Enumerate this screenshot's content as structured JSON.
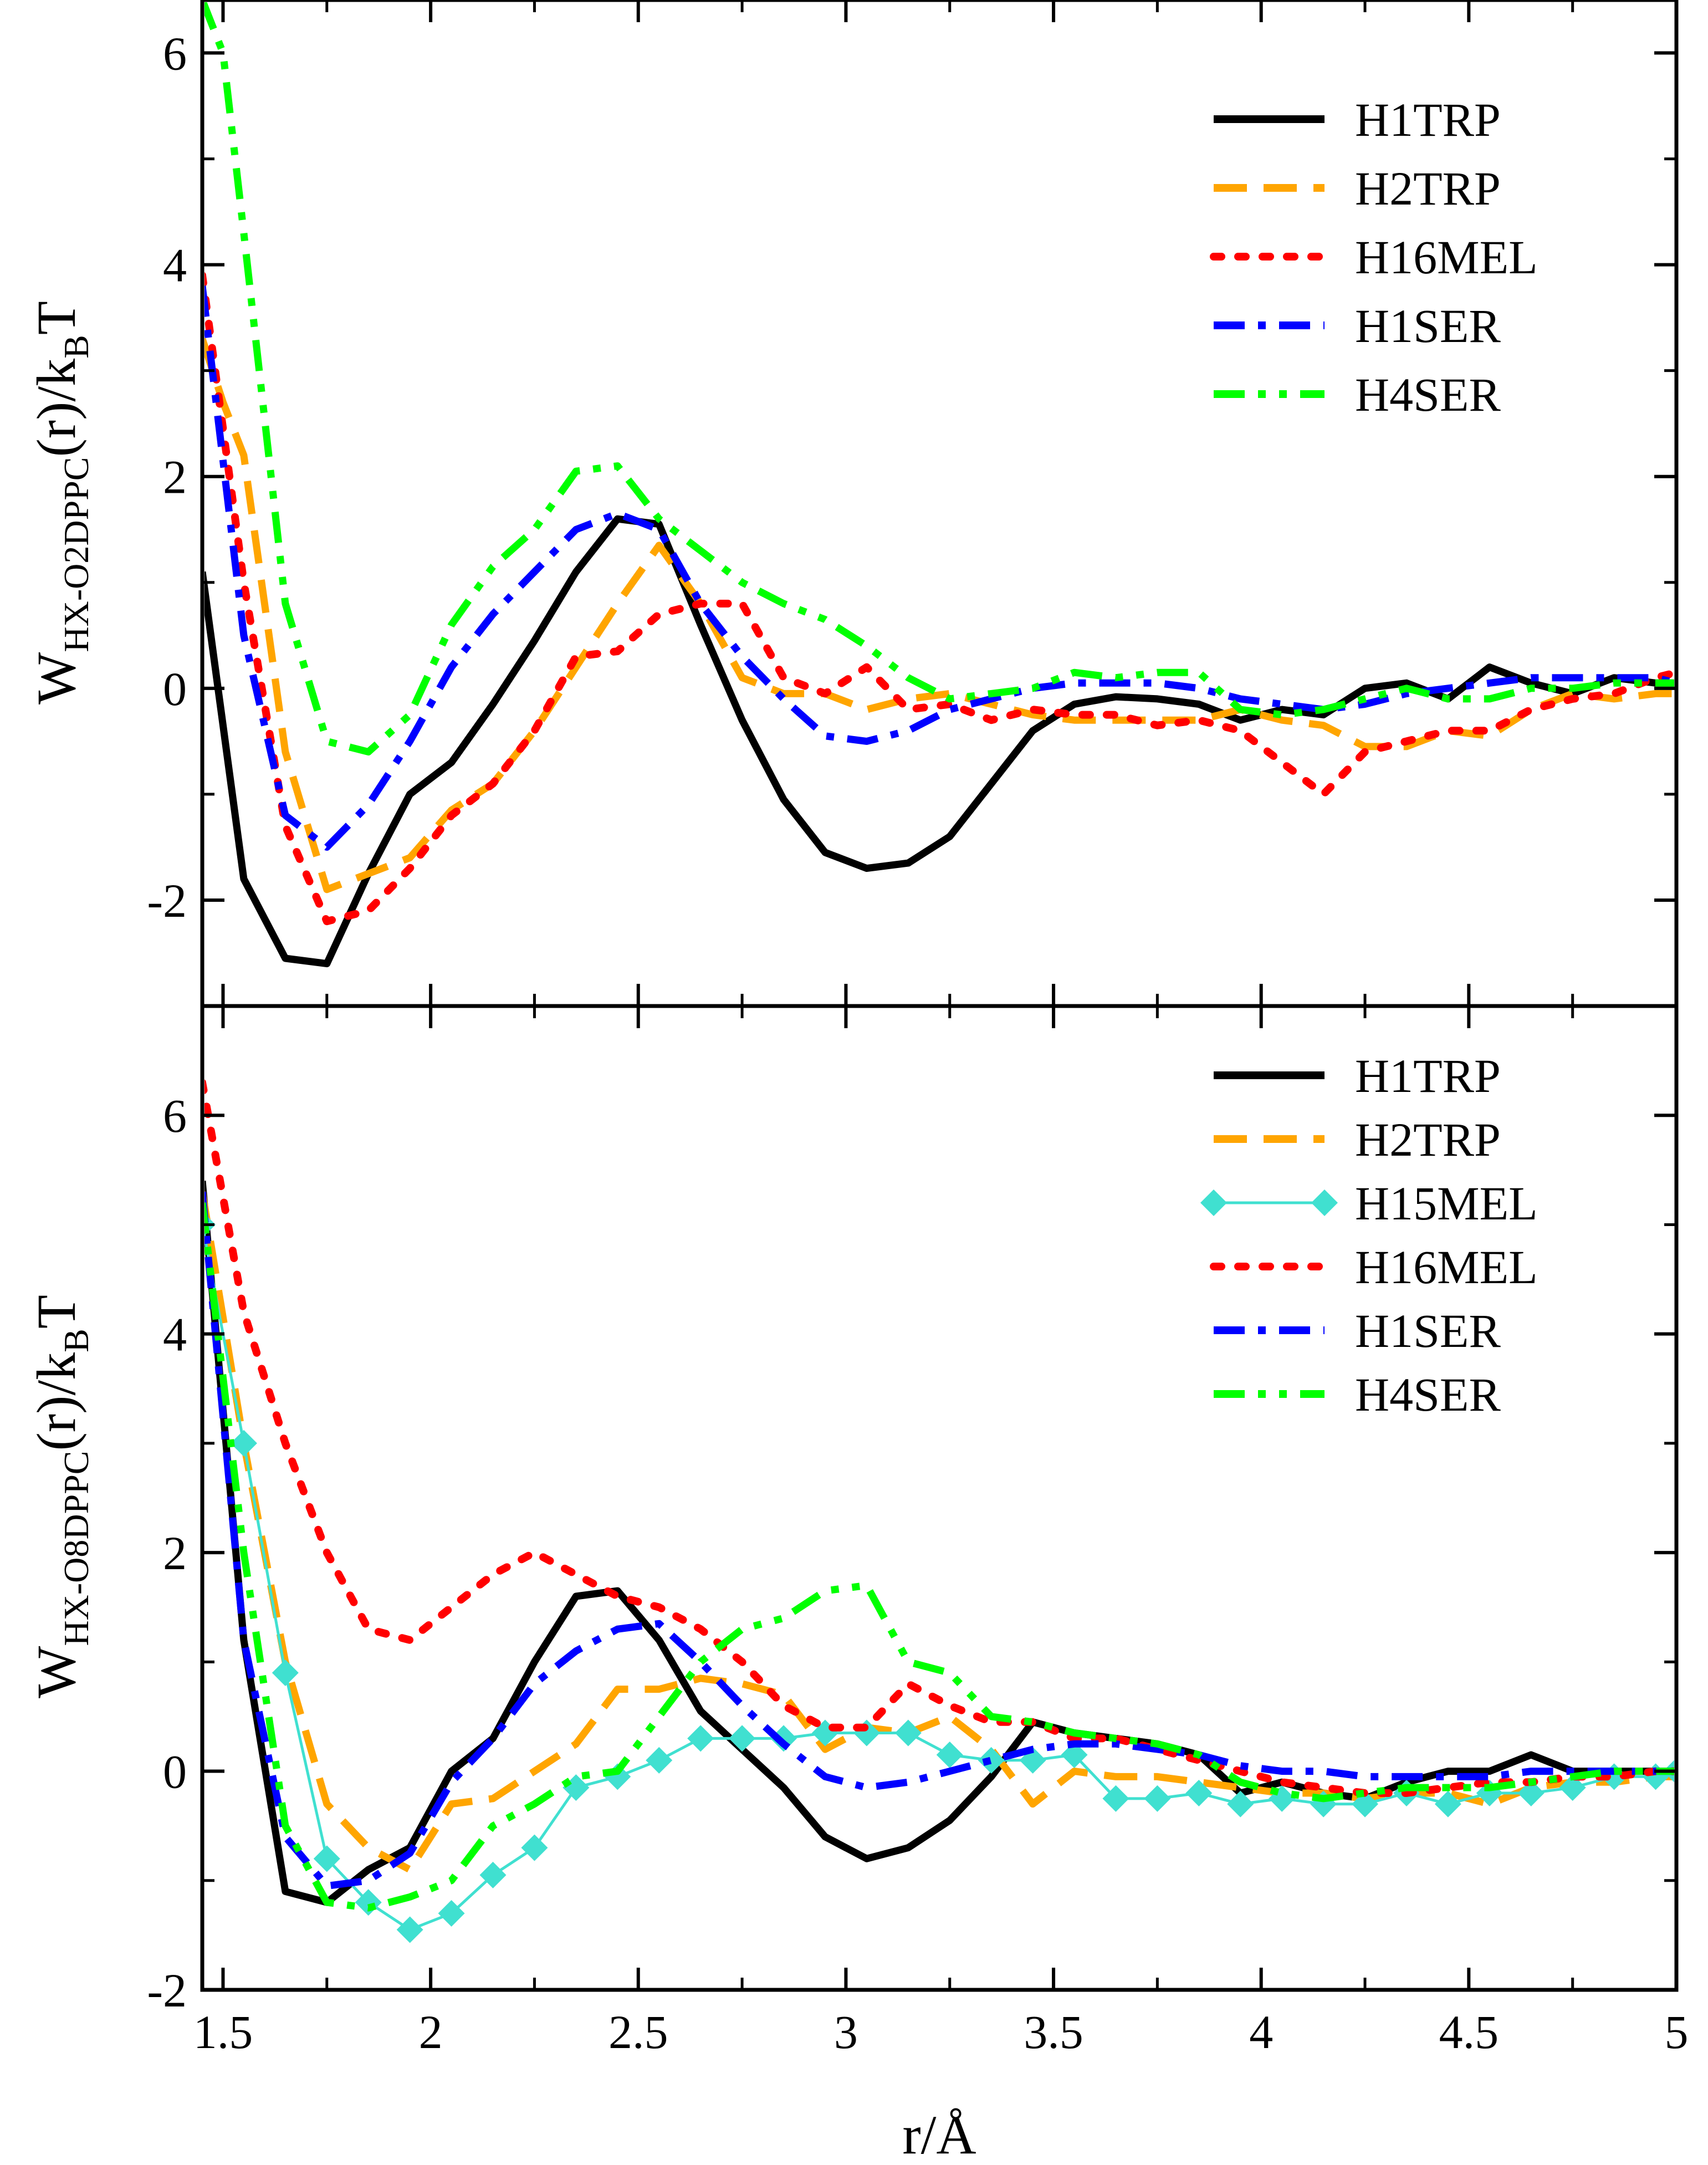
{
  "chart_data": [
    {
      "type": "line",
      "panel": "top",
      "ylabel": {
        "main": "W",
        "sub": "HX-O2DPPC",
        "mid": "(r)/k",
        "sub2": "B",
        "tail": "T"
      },
      "xlim": [
        1.45,
        5.0
      ],
      "ylim": [
        -3.0,
        6.5
      ],
      "yticks": [
        -2,
        0,
        2,
        4,
        6
      ],
      "ytick_labels": [
        "-2",
        "0",
        "2",
        "4",
        "6"
      ],
      "legend_position": "top-right",
      "series": [
        {
          "name": "H1TRP",
          "style": "solid",
          "color": "#000000",
          "x": [
            1.45,
            1.55,
            1.65,
            1.75,
            1.85,
            1.95,
            2.05,
            2.15,
            2.25,
            2.35,
            2.45,
            2.55,
            2.65,
            2.75,
            2.85,
            2.95,
            3.05,
            3.15,
            3.25,
            3.35,
            3.45,
            3.55,
            3.65,
            3.75,
            3.85,
            3.95,
            4.05,
            4.15,
            4.25,
            4.35,
            4.45,
            4.55,
            4.65,
            4.75,
            4.85,
            4.95,
            5.0
          ],
          "y": [
            1.1,
            -1.8,
            -2.55,
            -2.6,
            -1.75,
            -1.0,
            -0.7,
            -0.15,
            0.45,
            1.1,
            1.6,
            1.55,
            0.6,
            -0.3,
            -1.05,
            -1.55,
            -1.7,
            -1.65,
            -1.4,
            -0.9,
            -0.4,
            -0.15,
            -0.08,
            -0.1,
            -0.15,
            -0.3,
            -0.2,
            -0.25,
            0.0,
            0.05,
            -0.1,
            0.2,
            0.05,
            -0.05,
            0.1,
            0.05,
            0.05
          ]
        },
        {
          "name": "H2TRP",
          "style": "dashed",
          "color": "#FFA500",
          "x": [
            1.45,
            1.5,
            1.55,
            1.65,
            1.75,
            1.85,
            1.95,
            2.05,
            2.15,
            2.25,
            2.35,
            2.45,
            2.55,
            2.65,
            2.75,
            2.85,
            2.95,
            3.05,
            3.15,
            3.25,
            3.35,
            3.45,
            3.55,
            3.65,
            3.75,
            3.85,
            3.95,
            4.05,
            4.15,
            4.25,
            4.35,
            4.45,
            4.55,
            4.65,
            4.75,
            4.85,
            4.95,
            5.0
          ],
          "y": [
            3.3,
            2.7,
            2.2,
            -0.6,
            -1.9,
            -1.75,
            -1.6,
            -1.15,
            -0.9,
            -0.4,
            0.2,
            0.8,
            1.35,
            0.8,
            0.1,
            -0.05,
            -0.05,
            -0.2,
            -0.1,
            -0.05,
            -0.15,
            -0.25,
            -0.3,
            -0.3,
            -0.3,
            -0.3,
            -0.2,
            -0.3,
            -0.35,
            -0.55,
            -0.55,
            -0.4,
            -0.45,
            -0.2,
            -0.05,
            -0.1,
            -0.05,
            -0.05
          ]
        },
        {
          "name": "H16MEL",
          "style": "dotted",
          "color": "#FF0000",
          "x": [
            1.45,
            1.55,
            1.65,
            1.75,
            1.85,
            1.95,
            2.05,
            2.15,
            2.25,
            2.35,
            2.45,
            2.55,
            2.65,
            2.75,
            2.85,
            2.95,
            3.05,
            3.15,
            3.25,
            3.35,
            3.45,
            3.55,
            3.65,
            3.75,
            3.85,
            3.95,
            4.05,
            4.15,
            4.25,
            4.35,
            4.45,
            4.55,
            4.65,
            4.75,
            4.85,
            4.95,
            5.0
          ],
          "y": [
            3.9,
            1.0,
            -1.3,
            -2.2,
            -2.1,
            -1.7,
            -1.2,
            -0.9,
            -0.4,
            0.3,
            0.35,
            0.7,
            0.8,
            0.8,
            0.1,
            -0.05,
            0.2,
            -0.2,
            -0.15,
            -0.3,
            -0.2,
            -0.25,
            -0.25,
            -0.35,
            -0.3,
            -0.4,
            -0.7,
            -1.0,
            -0.6,
            -0.5,
            -0.4,
            -0.4,
            -0.2,
            -0.1,
            -0.05,
            0.1,
            0.15
          ]
        },
        {
          "name": "H1SER",
          "style": "dashdot",
          "color": "#0000FF",
          "x": [
            1.45,
            1.55,
            1.65,
            1.75,
            1.85,
            1.95,
            2.05,
            2.15,
            2.25,
            2.35,
            2.45,
            2.55,
            2.65,
            2.75,
            2.85,
            2.95,
            3.05,
            3.15,
            3.25,
            3.35,
            3.45,
            3.55,
            3.65,
            3.75,
            3.85,
            3.95,
            4.05,
            4.15,
            4.25,
            4.35,
            4.45,
            4.55,
            4.65,
            4.75,
            4.85,
            4.95,
            5.0
          ],
          "y": [
            3.8,
            0.5,
            -1.2,
            -1.5,
            -1.1,
            -0.5,
            0.2,
            0.7,
            1.1,
            1.5,
            1.65,
            1.5,
            0.8,
            0.3,
            -0.1,
            -0.45,
            -0.5,
            -0.4,
            -0.2,
            -0.1,
            0.0,
            0.05,
            0.05,
            0.05,
            0.0,
            -0.1,
            -0.15,
            -0.2,
            -0.15,
            -0.05,
            0.0,
            0.05,
            0.1,
            0.1,
            0.1,
            0.1,
            0.05
          ]
        },
        {
          "name": "H4SER",
          "style": "dashdotdot",
          "color": "#00FF00",
          "x": [
            1.45,
            1.5,
            1.55,
            1.65,
            1.75,
            1.85,
            1.95,
            2.05,
            2.15,
            2.25,
            2.35,
            2.45,
            2.55,
            2.65,
            2.75,
            2.85,
            2.95,
            3.05,
            3.15,
            3.25,
            3.35,
            3.45,
            3.55,
            3.65,
            3.75,
            3.85,
            3.95,
            4.05,
            4.15,
            4.25,
            4.35,
            4.45,
            4.55,
            4.65,
            4.75,
            4.85,
            4.95,
            5.0
          ],
          "y": [
            6.5,
            6.0,
            4.3,
            0.8,
            -0.5,
            -0.6,
            -0.25,
            0.6,
            1.15,
            1.5,
            2.05,
            2.1,
            1.6,
            1.3,
            1.0,
            0.8,
            0.65,
            0.4,
            0.1,
            -0.1,
            -0.05,
            0.0,
            0.15,
            0.1,
            0.15,
            0.15,
            -0.2,
            -0.25,
            -0.2,
            -0.1,
            0.0,
            -0.1,
            -0.1,
            0.0,
            0.0,
            0.05,
            0.05,
            0.05
          ]
        }
      ]
    },
    {
      "type": "line",
      "panel": "bottom",
      "ylabel": {
        "main": "W",
        "sub": "HX-O8DPPC",
        "mid": "(r)/k",
        "sub2": "B",
        "tail": "T"
      },
      "xlabel": "r/Å",
      "xlim": [
        1.45,
        5.0
      ],
      "ylim": [
        -2.0,
        7.0
      ],
      "xticks": [
        1.5,
        2,
        2.5,
        3,
        3.5,
        4,
        4.5,
        5
      ],
      "xtick_labels": [
        "1.5",
        "2",
        "2.5",
        "3",
        "3.5",
        "4",
        "4.5",
        "5"
      ],
      "yticks": [
        -2,
        0,
        2,
        4,
        6
      ],
      "ytick_labels": [
        "-2",
        "0",
        "2",
        "4",
        "6"
      ],
      "legend_position": "top-right",
      "series": [
        {
          "name": "H1TRP",
          "style": "solid",
          "color": "#000000",
          "x": [
            1.45,
            1.55,
            1.65,
            1.75,
            1.85,
            1.95,
            2.05,
            2.15,
            2.25,
            2.35,
            2.45,
            2.55,
            2.65,
            2.75,
            2.85,
            2.95,
            3.05,
            3.15,
            3.25,
            3.35,
            3.45,
            3.55,
            3.65,
            3.75,
            3.85,
            3.95,
            4.05,
            4.15,
            4.25,
            4.35,
            4.45,
            4.55,
            4.65,
            4.75,
            4.85,
            4.95,
            5.0
          ],
          "y": [
            5.4,
            1.2,
            -1.1,
            -1.2,
            -0.9,
            -0.7,
            0.0,
            0.3,
            1.0,
            1.6,
            1.65,
            1.2,
            0.55,
            0.2,
            -0.15,
            -0.6,
            -0.8,
            -0.7,
            -0.45,
            -0.05,
            0.45,
            0.35,
            0.3,
            0.25,
            0.15,
            -0.2,
            -0.1,
            -0.2,
            -0.25,
            -0.1,
            0.0,
            0.0,
            0.15,
            0.0,
            0.0,
            0.0,
            0.0
          ]
        },
        {
          "name": "H2TRP",
          "style": "dashed",
          "color": "#FFA500",
          "x": [
            1.45,
            1.55,
            1.65,
            1.75,
            1.85,
            1.95,
            2.05,
            2.15,
            2.25,
            2.35,
            2.45,
            2.55,
            2.65,
            2.75,
            2.85,
            2.95,
            3.05,
            3.15,
            3.25,
            3.35,
            3.45,
            3.55,
            3.65,
            3.75,
            3.85,
            3.95,
            4.05,
            4.15,
            4.25,
            4.35,
            4.45,
            4.55,
            4.65,
            4.75,
            4.85,
            4.95,
            5.0
          ],
          "y": [
            5.3,
            3.0,
            1.0,
            -0.3,
            -0.7,
            -0.9,
            -0.3,
            -0.25,
            0.0,
            0.25,
            0.75,
            0.75,
            0.85,
            0.8,
            0.7,
            0.2,
            0.4,
            0.35,
            0.5,
            0.2,
            -0.3,
            0.0,
            -0.05,
            -0.05,
            -0.1,
            -0.15,
            -0.2,
            -0.2,
            -0.25,
            -0.2,
            -0.2,
            -0.3,
            -0.15,
            -0.1,
            -0.1,
            -0.05,
            -0.05
          ]
        },
        {
          "name": "H15MEL",
          "style": "solid-diamond",
          "color": "#40E0D0",
          "x": [
            1.45,
            1.55,
            1.65,
            1.75,
            1.85,
            1.95,
            2.05,
            2.15,
            2.25,
            2.35,
            2.45,
            2.55,
            2.65,
            2.75,
            2.85,
            2.95,
            3.05,
            3.15,
            3.25,
            3.35,
            3.45,
            3.55,
            3.65,
            3.75,
            3.85,
            3.95,
            4.05,
            4.15,
            4.25,
            4.35,
            4.45,
            4.55,
            4.65,
            4.75,
            4.85,
            4.95,
            5.0
          ],
          "y": [
            5.0,
            3.0,
            0.9,
            -0.8,
            -1.2,
            -1.45,
            -1.3,
            -0.95,
            -0.7,
            -0.15,
            -0.05,
            0.1,
            0.3,
            0.3,
            0.3,
            0.35,
            0.35,
            0.35,
            0.15,
            0.1,
            0.1,
            0.15,
            -0.25,
            -0.25,
            -0.2,
            -0.3,
            -0.25,
            -0.3,
            -0.3,
            -0.2,
            -0.3,
            -0.2,
            -0.2,
            -0.15,
            -0.05,
            -0.05,
            0.0
          ]
        },
        {
          "name": "H16MEL",
          "style": "dotted",
          "color": "#FF0000",
          "x": [
            1.45,
            1.55,
            1.65,
            1.75,
            1.85,
            1.95,
            2.05,
            2.15,
            2.25,
            2.35,
            2.45,
            2.55,
            2.65,
            2.75,
            2.85,
            2.95,
            3.05,
            3.15,
            3.25,
            3.35,
            3.45,
            3.55,
            3.65,
            3.75,
            3.85,
            3.95,
            4.05,
            4.15,
            4.25,
            4.35,
            4.45,
            4.55,
            4.65,
            4.75,
            4.85,
            4.95,
            5.0
          ],
          "y": [
            6.3,
            4.2,
            3.0,
            2.0,
            1.3,
            1.2,
            1.5,
            1.8,
            2.0,
            1.8,
            1.6,
            1.5,
            1.3,
            1.0,
            0.6,
            0.4,
            0.4,
            0.8,
            0.6,
            0.45,
            0.45,
            0.3,
            0.3,
            0.2,
            0.1,
            0.0,
            -0.1,
            -0.15,
            -0.2,
            -0.2,
            -0.15,
            -0.1,
            -0.1,
            -0.05,
            -0.05,
            0.0,
            0.0
          ]
        },
        {
          "name": "H1SER",
          "style": "dashdot",
          "color": "#0000FF",
          "x": [
            1.45,
            1.55,
            1.65,
            1.75,
            1.85,
            1.95,
            2.05,
            2.15,
            2.25,
            2.35,
            2.45,
            2.55,
            2.65,
            2.75,
            2.85,
            2.95,
            3.05,
            3.15,
            3.25,
            3.35,
            3.45,
            3.55,
            3.65,
            3.75,
            3.85,
            3.95,
            4.05,
            4.15,
            4.25,
            4.35,
            4.45,
            4.55,
            4.65,
            4.75,
            4.85,
            4.95,
            5.0
          ],
          "y": [
            5.3,
            1.2,
            -0.6,
            -1.05,
            -1.0,
            -0.75,
            -0.1,
            0.3,
            0.8,
            1.1,
            1.3,
            1.35,
            1.0,
            0.6,
            0.25,
            -0.05,
            -0.15,
            -0.1,
            0.0,
            0.1,
            0.2,
            0.25,
            0.25,
            0.2,
            0.15,
            0.05,
            0.0,
            0.0,
            -0.05,
            -0.05,
            -0.05,
            -0.05,
            0.0,
            0.0,
            0.0,
            0.0,
            0.0
          ]
        },
        {
          "name": "H4SER",
          "style": "dashdotdot",
          "color": "#00FF00",
          "x": [
            1.45,
            1.55,
            1.65,
            1.75,
            1.85,
            1.95,
            2.05,
            2.15,
            2.25,
            2.35,
            2.45,
            2.55,
            2.65,
            2.75,
            2.85,
            2.95,
            3.05,
            3.15,
            3.25,
            3.35,
            3.45,
            3.55,
            3.65,
            3.75,
            3.85,
            3.95,
            4.05,
            4.15,
            4.25,
            4.35,
            4.45,
            4.55,
            4.65,
            4.75,
            4.85,
            4.95,
            5.0
          ],
          "y": [
            5.2,
            2.0,
            -0.5,
            -1.2,
            -1.25,
            -1.15,
            -1.0,
            -0.5,
            -0.3,
            -0.05,
            0.0,
            0.5,
            1.0,
            1.3,
            1.4,
            1.65,
            1.7,
            1.0,
            0.9,
            0.5,
            0.45,
            0.35,
            0.3,
            0.25,
            0.15,
            -0.1,
            -0.2,
            -0.25,
            -0.2,
            -0.15,
            -0.15,
            -0.15,
            -0.1,
            -0.05,
            0.0,
            0.0,
            0.0
          ]
        }
      ]
    }
  ]
}
